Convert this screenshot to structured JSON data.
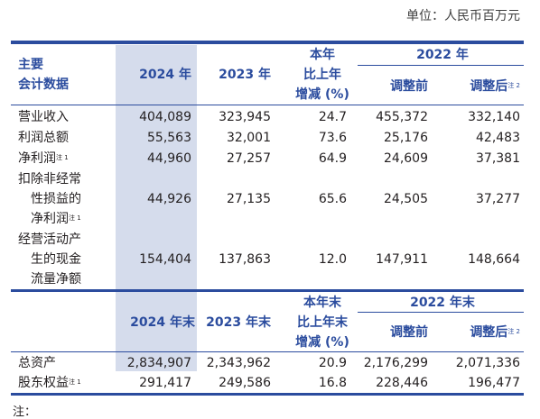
{
  "unit_label": "单位：人民币百万元",
  "colors": {
    "accent": "#2b4c9e",
    "highlight": "#d5dcec"
  },
  "header1": {
    "col0_line1": "主要",
    "col0_line2": "会计数据",
    "y2024": "2024 年",
    "y2023": "2023 年",
    "change_line1": "本年",
    "change_line2": "比上年",
    "change_line3": "增减 (%)",
    "y2022": "2022 年",
    "adjusted_before": "调整前",
    "adjusted_after": "调整后",
    "adjusted_after_note": "注 2"
  },
  "rows1": [
    {
      "label": "营业收入",
      "v2024": "404,089",
      "v2023": "323,945",
      "chg": "24.7",
      "before": "455,372",
      "after": "332,140"
    },
    {
      "label": "利润总额",
      "v2024": "55,563",
      "v2023": "32,001",
      "chg": "73.6",
      "before": "25,176",
      "after": "42,483"
    },
    {
      "label": "净利润",
      "note": "注 1",
      "v2024": "44,960",
      "v2023": "27,257",
      "chg": "64.9",
      "before": "24,609",
      "after": "37,381"
    }
  ],
  "row_nonrecurring": {
    "label_line1": "扣除非经常",
    "label_line2": "性损益的",
    "label_line3": "净利润",
    "note": "注 1",
    "v2024": "44,926",
    "v2023": "27,135",
    "chg": "65.6",
    "before": "24,505",
    "after": "37,277"
  },
  "row_cashflow": {
    "label_line1": "经营活动产",
    "label_line2": "生的现金",
    "label_line3": "流量净额",
    "v2024": "154,404",
    "v2023": "137,863",
    "chg": "12.0",
    "before": "147,911",
    "after": "148,664"
  },
  "header2": {
    "y2024": "2024 年末",
    "y2023": "2023 年末",
    "change_line1": "本年末",
    "change_line2": "比上年末",
    "change_line3": "增减 (%)",
    "y2022": "2022 年末",
    "adjusted_before": "调整前",
    "adjusted_after": "调整后",
    "adjusted_after_note": "注 2"
  },
  "rows2": [
    {
      "label": "总资产",
      "v2024": "2,834,907",
      "v2023": "2,343,962",
      "chg": "20.9",
      "before": "2,176,299",
      "after": "2,071,336"
    },
    {
      "label": "股东权益",
      "note": "注 1",
      "v2024": "291,417",
      "v2023": "249,586",
      "chg": "16.8",
      "before": "228,446",
      "after": "196,477"
    }
  ],
  "footnote_peek": "注："
}
